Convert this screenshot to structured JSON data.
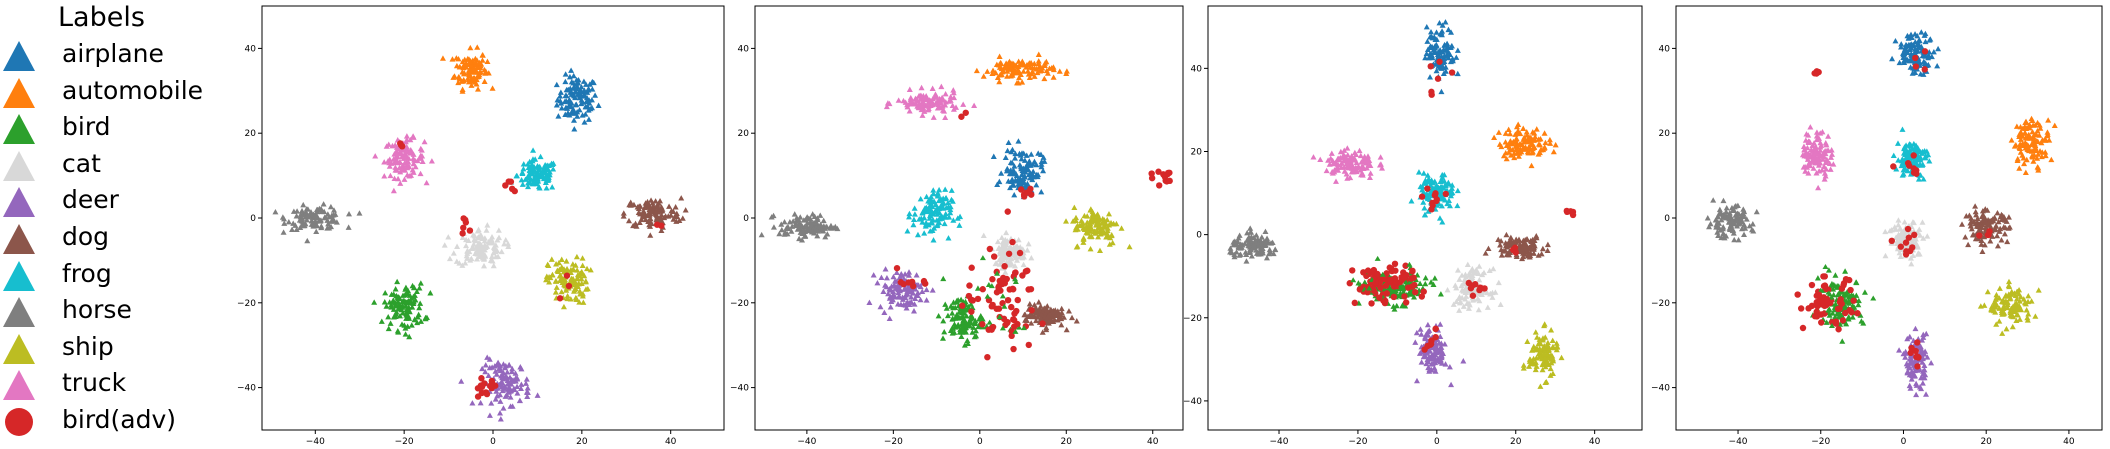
{
  "legend": {
    "title": "Labels",
    "items": [
      {
        "label": "airplane",
        "color": "#1f77b4",
        "marker": "triangle"
      },
      {
        "label": "automobile",
        "color": "#ff7f0e",
        "marker": "triangle"
      },
      {
        "label": "bird",
        "color": "#2ca02c",
        "marker": "triangle"
      },
      {
        "label": "cat",
        "color": "#d8d8d8",
        "marker": "triangle"
      },
      {
        "label": "deer",
        "color": "#9467bd",
        "marker": "triangle"
      },
      {
        "label": "dog",
        "color": "#8c564b",
        "marker": "triangle"
      },
      {
        "label": "frog",
        "color": "#17becf",
        "marker": "triangle"
      },
      {
        "label": "horse",
        "color": "#7f7f7f",
        "marker": "triangle"
      },
      {
        "label": "ship",
        "color": "#bcbd22",
        "marker": "triangle"
      },
      {
        "label": "truck",
        "color": "#e377c2",
        "marker": "triangle"
      },
      {
        "label": "bird(adv)",
        "color": "#d62728",
        "marker": "circle"
      }
    ]
  },
  "chart_data": [
    {
      "type": "scatter",
      "xlim": [
        -52,
        52
      ],
      "ylim": [
        -50,
        50
      ],
      "xticks": [
        -40,
        -20,
        0,
        20,
        40
      ],
      "yticks": [
        -40,
        -20,
        0,
        20,
        40
      ],
      "clusters": [
        {
          "series": "airplane",
          "cx": 19,
          "cy": 28,
          "rx": 5,
          "ry": 6
        },
        {
          "series": "automobile",
          "cx": -5,
          "cy": 35,
          "rx": 4,
          "ry": 5
        },
        {
          "series": "truck",
          "cx": -20,
          "cy": 14,
          "rx": 5,
          "ry": 5
        },
        {
          "series": "frog",
          "cx": 10,
          "cy": 10,
          "rx": 5,
          "ry": 4
        },
        {
          "series": "horse",
          "cx": -40,
          "cy": 0,
          "rx": 7,
          "ry": 3
        },
        {
          "series": "dog",
          "cx": 36,
          "cy": 1,
          "rx": 7,
          "ry": 4
        },
        {
          "series": "cat",
          "cx": -3,
          "cy": -7,
          "rx": 6,
          "ry": 5
        },
        {
          "series": "ship",
          "cx": 17,
          "cy": -15,
          "rx": 5,
          "ry": 6
        },
        {
          "series": "bird",
          "cx": -20,
          "cy": -21,
          "rx": 5,
          "ry": 6
        },
        {
          "series": "deer",
          "cx": 3,
          "cy": -39,
          "rx": 6,
          "ry": 6
        }
      ],
      "adv": [
        {
          "cx": -2,
          "cy": -40,
          "rx": 3,
          "ry": 2,
          "n": 14
        },
        {
          "cx": -6,
          "cy": -2,
          "rx": 2,
          "ry": 2,
          "n": 6
        },
        {
          "cx": 4,
          "cy": 8,
          "rx": 2,
          "ry": 2,
          "n": 5
        },
        {
          "cx": -20,
          "cy": 17,
          "rx": 1,
          "ry": 1,
          "n": 3
        },
        {
          "cx": 17,
          "cy": -16,
          "rx": 3,
          "ry": 2,
          "n": 3
        },
        {
          "cx": 38,
          "cy": -2,
          "rx": 2,
          "ry": 1,
          "n": 2
        }
      ]
    },
    {
      "type": "scatter",
      "xlim": [
        -52,
        47
      ],
      "ylim": [
        -50,
        50
      ],
      "xticks": [
        -40,
        -20,
        0,
        20,
        40
      ],
      "yticks": [
        -40,
        -20,
        0,
        20,
        40
      ],
      "clusters": [
        {
          "series": "automobile",
          "cx": 9,
          "cy": 35,
          "rx": 9,
          "ry": 3
        },
        {
          "series": "truck",
          "cx": -12,
          "cy": 27,
          "rx": 8,
          "ry": 3
        },
        {
          "series": "airplane",
          "cx": 10,
          "cy": 11,
          "rx": 5,
          "ry": 6
        },
        {
          "series": "frog",
          "cx": -11,
          "cy": 1,
          "rx": 5,
          "ry": 6
        },
        {
          "series": "horse",
          "cx": -40,
          "cy": -2,
          "rx": 7,
          "ry": 3
        },
        {
          "series": "ship",
          "cx": 27,
          "cy": -2,
          "rx": 6,
          "ry": 5
        },
        {
          "series": "cat",
          "cx": 7,
          "cy": -8,
          "rx": 4,
          "ry": 4
        },
        {
          "series": "deer",
          "cx": -18,
          "cy": -17,
          "rx": 6,
          "ry": 5
        },
        {
          "series": "bird",
          "cx": -4,
          "cy": -24,
          "rx": 5,
          "ry": 6
        },
        {
          "series": "dog",
          "cx": 15,
          "cy": -23,
          "rx": 5,
          "ry": 3
        }
      ],
      "adv": [
        {
          "cx": 42,
          "cy": 10,
          "rx": 3,
          "ry": 2,
          "n": 12
        },
        {
          "cx": 5,
          "cy": -20,
          "rx": 8,
          "ry": 12,
          "n": 70
        },
        {
          "cx": -15,
          "cy": -15,
          "rx": 4,
          "ry": 3,
          "n": 8
        },
        {
          "cx": 10,
          "cy": 6,
          "rx": 3,
          "ry": 2,
          "n": 6
        },
        {
          "cx": -4,
          "cy": 25,
          "rx": 1,
          "ry": 1,
          "n": 2
        }
      ]
    },
    {
      "type": "scatter",
      "xlim": [
        -58,
        52
      ],
      "ylim": [
        -47,
        55
      ],
      "xticks": [
        -40,
        -20,
        0,
        20,
        40
      ],
      "yticks": [
        -40,
        -20,
        0,
        20,
        40
      ],
      "clusters": [
        {
          "series": "airplane",
          "cx": 1,
          "cy": 44,
          "rx": 4,
          "ry": 7
        },
        {
          "series": "automobile",
          "cx": 22,
          "cy": 22,
          "rx": 7,
          "ry": 4
        },
        {
          "series": "truck",
          "cx": -22,
          "cy": 17,
          "rx": 7,
          "ry": 4
        },
        {
          "series": "frog",
          "cx": 0,
          "cy": 10,
          "rx": 5,
          "ry": 5
        },
        {
          "series": "horse",
          "cx": -46,
          "cy": -3,
          "rx": 7,
          "ry": 3
        },
        {
          "series": "dog",
          "cx": 21,
          "cy": -3,
          "rx": 7,
          "ry": 3
        },
        {
          "series": "cat",
          "cx": 9,
          "cy": -13,
          "rx": 5,
          "ry": 5
        },
        {
          "series": "bird",
          "cx": -10,
          "cy": -13,
          "rx": 9,
          "ry": 4
        },
        {
          "series": "deer",
          "cx": -1,
          "cy": -28,
          "rx": 4,
          "ry": 6
        },
        {
          "series": "ship",
          "cx": 27,
          "cy": -29,
          "rx": 4,
          "ry": 6
        }
      ],
      "adv": [
        {
          "cx": -13,
          "cy": -12,
          "rx": 8,
          "ry": 5,
          "n": 90
        },
        {
          "cx": 0,
          "cy": 38,
          "rx": 3,
          "ry": 4,
          "n": 6
        },
        {
          "cx": -1,
          "cy": 8,
          "rx": 3,
          "ry": 3,
          "n": 10
        },
        {
          "cx": 34,
          "cy": 5,
          "rx": 1,
          "ry": 1,
          "n": 5
        },
        {
          "cx": -1,
          "cy": -26,
          "rx": 2,
          "ry": 3,
          "n": 8
        },
        {
          "cx": 9,
          "cy": -13,
          "rx": 3,
          "ry": 3,
          "n": 8
        },
        {
          "cx": 21,
          "cy": -4,
          "rx": 2,
          "ry": 1,
          "n": 3
        }
      ]
    },
    {
      "type": "scatter",
      "xlim": [
        -55,
        48
      ],
      "ylim": [
        -50,
        50
      ],
      "xticks": [
        -40,
        -20,
        0,
        20,
        40
      ],
      "yticks": [
        -40,
        -20,
        0,
        20,
        40
      ],
      "clusters": [
        {
          "series": "airplane",
          "cx": 3,
          "cy": 39,
          "rx": 5,
          "ry": 5
        },
        {
          "series": "automobile",
          "cx": 31,
          "cy": 18,
          "rx": 5,
          "ry": 6
        },
        {
          "series": "truck",
          "cx": -21,
          "cy": 15,
          "rx": 4,
          "ry": 6
        },
        {
          "series": "frog",
          "cx": 2,
          "cy": 14,
          "rx": 4,
          "ry": 5
        },
        {
          "series": "horse",
          "cx": -42,
          "cy": -1,
          "rx": 6,
          "ry": 4
        },
        {
          "series": "dog",
          "cx": 20,
          "cy": -2,
          "rx": 6,
          "ry": 4
        },
        {
          "series": "cat",
          "cx": 1,
          "cy": -5,
          "rx": 5,
          "ry": 5
        },
        {
          "series": "bird",
          "cx": -15,
          "cy": -20,
          "rx": 6,
          "ry": 6
        },
        {
          "series": "ship",
          "cx": 26,
          "cy": -21,
          "rx": 6,
          "ry": 5
        },
        {
          "series": "deer",
          "cx": 3,
          "cy": -34,
          "rx": 3,
          "ry": 7
        }
      ],
      "adv": [
        {
          "cx": -18,
          "cy": -20,
          "rx": 6,
          "ry": 6,
          "n": 60
        },
        {
          "cx": -21,
          "cy": 34,
          "rx": 1,
          "ry": 1,
          "n": 5
        },
        {
          "cx": 3,
          "cy": -32,
          "rx": 2,
          "ry": 3,
          "n": 8
        },
        {
          "cx": 1,
          "cy": -6,
          "rx": 3,
          "ry": 3,
          "n": 10
        },
        {
          "cx": 2,
          "cy": 11,
          "rx": 3,
          "ry": 3,
          "n": 8
        },
        {
          "cx": 20,
          "cy": -4,
          "rx": 2,
          "ry": 1,
          "n": 4
        },
        {
          "cx": 4,
          "cy": 36,
          "rx": 2,
          "ry": 2,
          "n": 4
        }
      ]
    }
  ]
}
